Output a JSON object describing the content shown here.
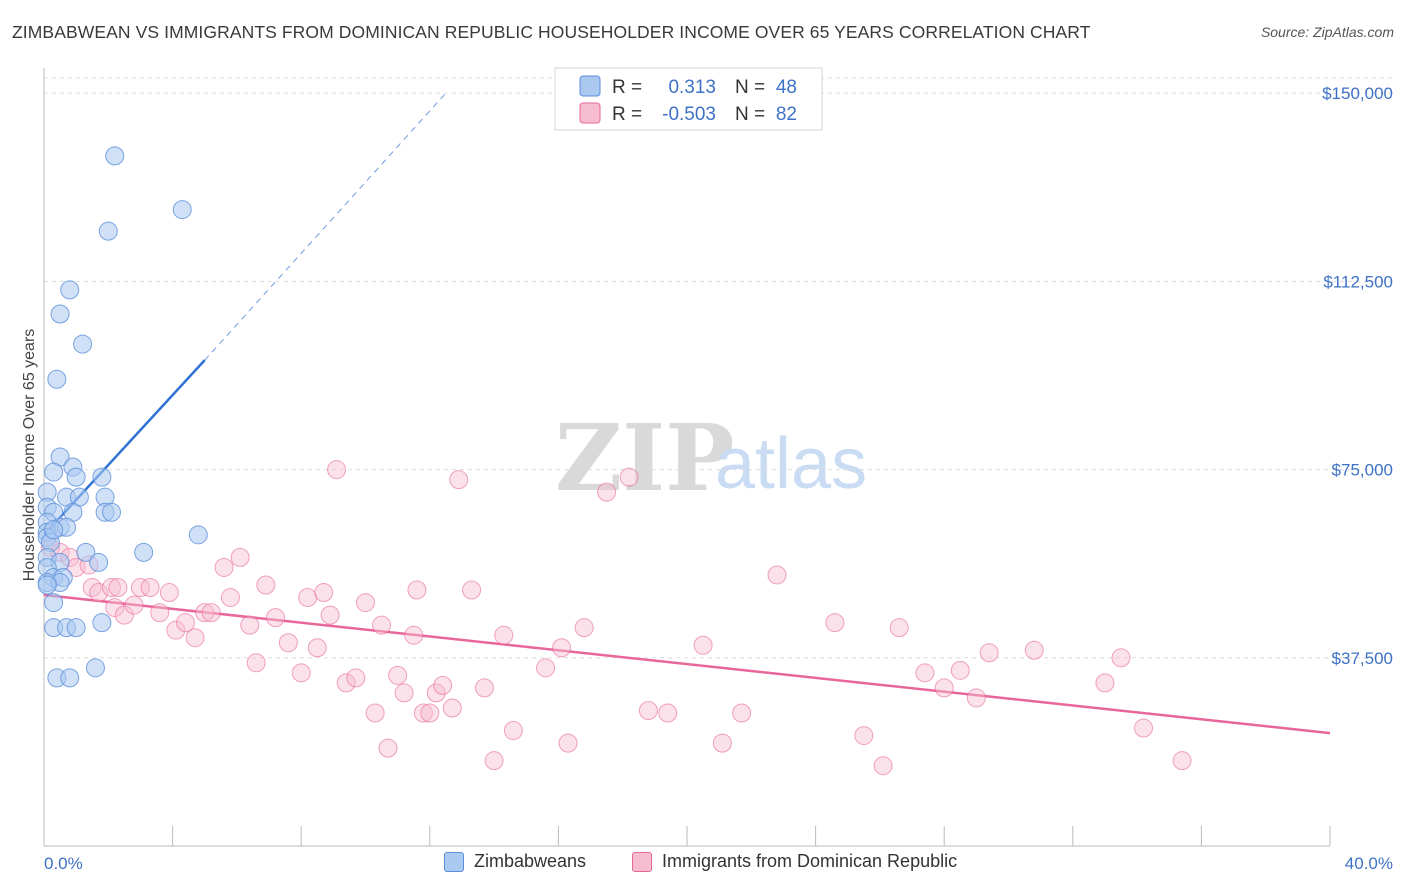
{
  "header": {
    "title": "ZIMBABWEAN VS IMMIGRANTS FROM DOMINICAN REPUBLIC HOUSEHOLDER INCOME OVER 65 YEARS CORRELATION CHART",
    "source": "Source: ZipAtlas.com"
  },
  "watermark": {
    "zip": "ZIP",
    "atlas": "atlas"
  },
  "colors": {
    "blue": "#3d72c7",
    "blue_fill": "#aac8f0",
    "blue_line": "#2f72d4",
    "pink": "#e8679a",
    "pink_fill": "#f6bdd0",
    "grid": "#dddddd"
  },
  "legend": {
    "rows": [
      {
        "r_label": "R =",
        "r_value": "0.313",
        "n_label": "N =",
        "n_value": "48"
      },
      {
        "r_label": "R =",
        "r_value": "-0.503",
        "n_label": "N =",
        "n_value": "82"
      }
    ]
  },
  "bottom_legend": {
    "series1": "Zimbabweans",
    "series2": "Immigrants from Dominican Republic"
  },
  "chart_data": {
    "type": "scatter",
    "title": "ZIMBABWEAN VS IMMIGRANTS FROM DOMINICAN REPUBLIC HOUSEHOLDER INCOME OVER 65 YEARS CORRELATION CHART",
    "xlabel": "",
    "ylabel": "Householder Income Over 65 years",
    "xlim": [
      0,
      40
    ],
    "ylim": [
      0,
      157000
    ],
    "x_tick_labels": [
      "0.0%",
      "40.0%"
    ],
    "y_ticks": [
      37500,
      75000,
      112500,
      150000
    ],
    "y_tick_labels": [
      "$37,500",
      "$75,000",
      "$112,500",
      "$150,000"
    ],
    "series": [
      {
        "name": "Zimbabweans",
        "r": 0.313,
        "n": 48,
        "trend": {
          "x0": 0.0,
          "y0": 62000,
          "x1": 5.0,
          "y1": 96800,
          "dash_to_x": 12.5,
          "dash_to_y": 150000
        },
        "points": [
          [
            2.2,
            137500
          ],
          [
            4.3,
            126800
          ],
          [
            2.0,
            122500
          ],
          [
            0.8,
            110800
          ],
          [
            0.5,
            106000
          ],
          [
            1.2,
            100000
          ],
          [
            0.4,
            93000
          ],
          [
            0.5,
            77500
          ],
          [
            0.9,
            75500
          ],
          [
            0.3,
            74500
          ],
          [
            1.0,
            73500
          ],
          [
            1.8,
            73500
          ],
          [
            0.1,
            70500
          ],
          [
            0.7,
            69500
          ],
          [
            1.1,
            69500
          ],
          [
            1.9,
            69500
          ],
          [
            0.1,
            67500
          ],
          [
            0.3,
            66500
          ],
          [
            0.9,
            66500
          ],
          [
            1.9,
            66500
          ],
          [
            2.1,
            66500
          ],
          [
            0.1,
            64500
          ],
          [
            0.5,
            63500
          ],
          [
            0.7,
            63500
          ],
          [
            0.1,
            62500
          ],
          [
            0.1,
            61500
          ],
          [
            0.2,
            60500
          ],
          [
            1.3,
            58500
          ],
          [
            3.1,
            58500
          ],
          [
            4.8,
            62000
          ],
          [
            0.1,
            57500
          ],
          [
            0.5,
            56500
          ],
          [
            1.7,
            56500
          ],
          [
            0.1,
            55500
          ],
          [
            0.3,
            53500
          ],
          [
            0.6,
            53500
          ],
          [
            0.1,
            52500
          ],
          [
            0.5,
            52500
          ],
          [
            0.3,
            48500
          ],
          [
            1.8,
            44500
          ],
          [
            0.3,
            43500
          ],
          [
            0.7,
            43500
          ],
          [
            1.0,
            43500
          ],
          [
            1.6,
            35500
          ],
          [
            0.4,
            33500
          ],
          [
            0.8,
            33500
          ],
          [
            0.1,
            52000
          ],
          [
            0.3,
            63000
          ]
        ]
      },
      {
        "name": "Immigrants from Dominican Republic",
        "r": -0.503,
        "n": 82,
        "trend": {
          "x0": 0.0,
          "y0": 50000,
          "x1": 40.0,
          "y1": 22500
        },
        "points": [
          [
            0.2,
            59500
          ],
          [
            0.5,
            58500
          ],
          [
            0.8,
            57500
          ],
          [
            1.0,
            55500
          ],
          [
            1.4,
            56000
          ],
          [
            1.5,
            51500
          ],
          [
            1.7,
            50500
          ],
          [
            2.1,
            51500
          ],
          [
            2.3,
            51500
          ],
          [
            2.2,
            47500
          ],
          [
            2.5,
            46000
          ],
          [
            2.8,
            48000
          ],
          [
            3.0,
            51500
          ],
          [
            3.3,
            51500
          ],
          [
            3.6,
            46500
          ],
          [
            3.9,
            50500
          ],
          [
            4.1,
            43000
          ],
          [
            4.4,
            44500
          ],
          [
            4.7,
            41500
          ],
          [
            5.0,
            46500
          ],
          [
            5.2,
            46500
          ],
          [
            5.6,
            55500
          ],
          [
            5.8,
            49500
          ],
          [
            6.1,
            57500
          ],
          [
            6.4,
            44000
          ],
          [
            6.6,
            36500
          ],
          [
            6.9,
            52000
          ],
          [
            7.2,
            45500
          ],
          [
            7.6,
            40500
          ],
          [
            8.0,
            34500
          ],
          [
            8.2,
            49500
          ],
          [
            8.5,
            39500
          ],
          [
            8.7,
            50500
          ],
          [
            8.9,
            46000
          ],
          [
            9.1,
            75000
          ],
          [
            9.4,
            32500
          ],
          [
            9.7,
            33500
          ],
          [
            10.0,
            48500
          ],
          [
            10.3,
            26500
          ],
          [
            10.5,
            44000
          ],
          [
            10.7,
            19500
          ],
          [
            11.0,
            34000
          ],
          [
            11.2,
            30500
          ],
          [
            11.5,
            42000
          ],
          [
            11.6,
            51000
          ],
          [
            11.8,
            26500
          ],
          [
            12.0,
            26500
          ],
          [
            12.2,
            30500
          ],
          [
            12.4,
            32000
          ],
          [
            12.7,
            27500
          ],
          [
            12.9,
            73000
          ],
          [
            13.3,
            51000
          ],
          [
            13.7,
            31500
          ],
          [
            14.0,
            17000
          ],
          [
            14.3,
            42000
          ],
          [
            14.6,
            23000
          ],
          [
            15.6,
            35500
          ],
          [
            16.1,
            39500
          ],
          [
            16.3,
            20500
          ],
          [
            16.8,
            43500
          ],
          [
            17.5,
            70500
          ],
          [
            18.2,
            73500
          ],
          [
            18.8,
            27000
          ],
          [
            19.4,
            26500
          ],
          [
            20.5,
            40000
          ],
          [
            21.1,
            20500
          ],
          [
            21.7,
            26500
          ],
          [
            22.8,
            54000
          ],
          [
            24.6,
            44500
          ],
          [
            25.5,
            22000
          ],
          [
            26.1,
            16000
          ],
          [
            26.6,
            43500
          ],
          [
            27.4,
            34500
          ],
          [
            28.0,
            31500
          ],
          [
            28.5,
            35000
          ],
          [
            29.0,
            29500
          ],
          [
            29.4,
            38500
          ],
          [
            30.8,
            39000
          ],
          [
            33.0,
            32500
          ],
          [
            33.5,
            37500
          ],
          [
            34.2,
            23500
          ],
          [
            35.4,
            17000
          ]
        ]
      }
    ]
  }
}
